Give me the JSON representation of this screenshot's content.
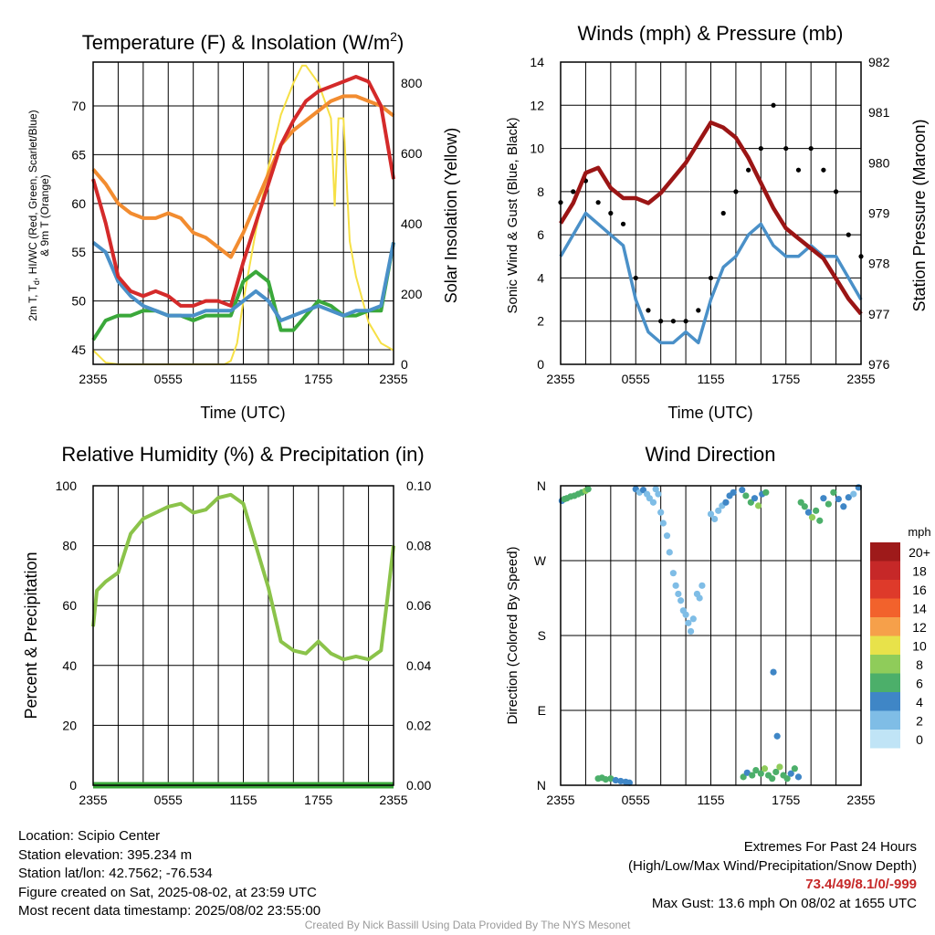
{
  "colors": {
    "temperature": "#d42a2a",
    "dewpoint": "#4a90c8",
    "heat_index_wind_chill": "#3aa83a",
    "temp_9m": "#f28c30",
    "insolation": "#f6e046",
    "wind_speed": "#4a90c8",
    "wind_gust": "#000000",
    "pressure": "#9b1515",
    "humidity": "#8bc34a",
    "precipitation": "#3aa83a"
  },
  "panels": {
    "temperature": {
      "title": "Temperature (F) & Insolation (W/m²)",
      "ylabel_left": "2m T, Td, HI/WC (Red, Green, Scarlet/Blue) & 9m T (Orange)",
      "ylabel_right": "Solar Insolation (Yellow)",
      "xlabel": "Time (UTC)"
    },
    "winds": {
      "title": "Winds (mph) & Pressure (mb)",
      "ylabel_left": "Sonic Wind & Gust (Blue, Black)",
      "ylabel_right": "Station Pressure (Maroon)",
      "xlabel": "Time (UTC)"
    },
    "humidity": {
      "title": "Relative Humidity (%) & Precipitation (in)",
      "ylabel_left": "Percent & Precipitation"
    },
    "direction": {
      "title": "Wind Direction",
      "ylabel_left": "Direction (Colored By Speed)",
      "colorbar_title": "mph",
      "colorbar_labels": [
        "20+",
        "18",
        "16",
        "14",
        "12",
        "10",
        "8",
        "6",
        "4",
        "2",
        "0"
      ],
      "colorbar_colors": [
        "#9e1a1a",
        "#c62828",
        "#de3a2a",
        "#f2622c",
        "#f6a04a",
        "#e8e24a",
        "#8fcc5a",
        "#4caf6a",
        "#3f86c6",
        "#7fbde6",
        "#c0e4f6"
      ]
    }
  },
  "info": {
    "location": "Location: Scipio Center",
    "elevation": "Station elevation: 395.234 m",
    "latlon": "Station lat/lon: 42.7562; -76.534",
    "created": "Figure created on Sat, 2025-08-02, at 23:59 UTC",
    "recent": "Most recent data timestamp: 2025/08/02 23:55:00"
  },
  "extremes": {
    "heading": "Extremes For Past 24 Hours",
    "subheading": "(High/Low/Max Wind/Precipitation/Snow Depth)",
    "values": "73.4/49/8.1/0/-999",
    "max_gust": "Max Gust: 13.6 mph On 08/02 at 1655 UTC"
  },
  "credit": "Created By Nick Bassill Using Data Provided By The NYS Mesonet",
  "chart_data": [
    {
      "type": "line",
      "x_ticks": [
        "2355",
        "0555",
        "1155",
        "1755",
        "2355"
      ],
      "x_hours": [
        0,
        6,
        12,
        18,
        24
      ],
      "ylim": [
        43.5,
        74.5
      ],
      "y_ticks": [
        45,
        50,
        55,
        60,
        65,
        70
      ],
      "y2lim": [
        0,
        860
      ],
      "y2_ticks": [
        0,
        200,
        400,
        600,
        800
      ],
      "x": [
        0,
        1,
        2,
        3,
        4,
        5,
        6,
        7,
        8,
        9,
        10,
        11,
        12,
        13,
        14,
        15,
        16,
        17,
        18,
        19,
        20,
        21,
        22,
        23,
        24
      ],
      "series": [
        {
          "key": "temperature",
          "values": [
            62.5,
            58,
            52.5,
            51,
            50.5,
            51,
            50.5,
            49.5,
            49.5,
            50,
            50,
            49.5,
            54,
            58,
            62,
            66,
            68.5,
            70.5,
            71.5,
            72,
            72.5,
            73,
            72.5,
            70,
            62.5
          ]
        },
        {
          "key": "temp_9m",
          "values": [
            63.5,
            62,
            60,
            59,
            58.5,
            58.5,
            59,
            58.5,
            57,
            56.5,
            55.5,
            54.5,
            57,
            60,
            63,
            66,
            67.5,
            68.5,
            69.5,
            70.5,
            71,
            71,
            70.5,
            70,
            69
          ]
        },
        {
          "key": "dewpoint",
          "values": [
            56,
            55,
            52,
            50.5,
            49.5,
            49,
            48.5,
            48.5,
            48.5,
            49,
            49,
            49,
            50,
            51,
            50,
            48,
            48.5,
            49,
            49.5,
            49,
            48.5,
            49,
            49,
            49.5,
            56
          ]
        },
        {
          "key": "heat_index_wind_chill",
          "values": [
            46,
            48,
            48.5,
            48.5,
            49,
            49,
            48.5,
            48.5,
            48,
            48.5,
            48.5,
            48.5,
            52,
            53,
            52,
            47,
            47,
            48.5,
            50,
            49.5,
            48.5,
            48.5,
            49,
            49,
            56
          ]
        }
      ],
      "insolation": {
        "key": "insolation",
        "x": [
          0,
          1,
          2,
          3,
          4,
          5,
          6,
          7,
          8,
          9,
          10,
          10.5,
          11,
          11.5,
          12,
          13,
          14,
          15,
          16,
          16.7,
          17,
          18,
          19,
          19.3,
          19.6,
          20,
          20.5,
          21,
          22,
          23,
          24
        ],
        "values": [
          40,
          5,
          0,
          0,
          0,
          0,
          0,
          0,
          0,
          0,
          0,
          0,
          10,
          60,
          180,
          380,
          560,
          710,
          800,
          850,
          850,
          800,
          700,
          450,
          700,
          700,
          350,
          250,
          120,
          60,
          40
        ]
      }
    },
    {
      "type": "line",
      "x_ticks": [
        "2355",
        "0555",
        "1155",
        "1755",
        "2355"
      ],
      "x_hours": [
        0,
        6,
        12,
        18,
        24
      ],
      "ylim": [
        0,
        14
      ],
      "y_ticks": [
        0,
        2,
        4,
        6,
        8,
        10,
        12,
        14
      ],
      "y2lim": [
        976,
        982
      ],
      "y2_ticks": [
        976,
        977,
        978,
        979,
        980,
        981,
        982
      ],
      "x": [
        0,
        1,
        2,
        3,
        4,
        5,
        6,
        7,
        8,
        9,
        10,
        11,
        12,
        13,
        14,
        15,
        16,
        17,
        18,
        19,
        20,
        21,
        22,
        23,
        24
      ],
      "series": [
        {
          "key": "wind_speed",
          "values": [
            5,
            6,
            7,
            6.5,
            6,
            5.5,
            3,
            1.5,
            1,
            1,
            1.5,
            1,
            3,
            4.5,
            5,
            6,
            6.5,
            5.5,
            5,
            5,
            5.5,
            5,
            5,
            4,
            3
          ]
        },
        {
          "key": "wind_gust",
          "values": [
            7.5,
            8,
            8.5,
            7.5,
            7,
            6.5,
            4,
            2.5,
            2,
            2,
            2,
            2.5,
            4,
            7,
            8,
            9,
            10,
            12,
            10,
            9,
            10,
            9,
            8,
            6,
            5
          ]
        },
        {
          "key": "pressure",
          "values": [
            978.8,
            979.2,
            979.8,
            979.9,
            979.5,
            979.3,
            979.3,
            979.2,
            979.4,
            979.7,
            980.0,
            980.4,
            980.8,
            980.7,
            980.5,
            980.1,
            979.6,
            979.1,
            978.7,
            978.5,
            978.3,
            978.1,
            977.7,
            977.3,
            977.0
          ]
        }
      ]
    },
    {
      "type": "line",
      "x_ticks": [
        "2355",
        "0555",
        "1155",
        "1755",
        "2355"
      ],
      "x_hours": [
        0,
        6,
        12,
        18,
        24
      ],
      "ylim": [
        0,
        100
      ],
      "y_ticks": [
        0,
        20,
        40,
        60,
        80,
        100
      ],
      "y2lim": [
        0,
        0.1
      ],
      "y2_ticks": [
        "0.00",
        "0.02",
        "0.04",
        "0.06",
        "0.08",
        "0.10"
      ],
      "x": [
        0,
        0.3,
        1,
        2,
        3,
        4,
        5,
        6,
        7,
        8,
        9,
        10,
        11,
        12,
        13,
        14,
        15,
        16,
        17,
        18,
        19,
        20,
        21,
        22,
        23,
        23.5,
        24
      ],
      "series": [
        {
          "key": "humidity",
          "values": [
            53,
            65,
            68,
            71,
            84,
            89,
            91,
            93,
            94,
            91,
            92,
            96,
            97,
            94,
            80,
            66,
            48,
            45,
            44,
            48,
            44,
            42,
            43,
            42,
            45,
            62,
            80
          ]
        },
        {
          "key": "precipitation",
          "values": [
            0,
            0,
            0,
            0,
            0,
            0,
            0,
            0,
            0,
            0,
            0,
            0,
            0,
            0,
            0,
            0,
            0,
            0,
            0,
            0,
            0,
            0,
            0,
            0,
            0,
            0,
            0
          ]
        }
      ]
    },
    {
      "type": "scatter",
      "x_ticks": [
        "2355",
        "0555",
        "1155",
        "1755",
        "2355"
      ],
      "x_hours": [
        0,
        6,
        12,
        18,
        24
      ],
      "y_ticks": [
        "N",
        "E",
        "S",
        "W",
        "N"
      ],
      "ylim": [
        0,
        360
      ],
      "points": [
        [
          0.1,
          342,
          4
        ],
        [
          0.3,
          344,
          5
        ],
        [
          0.5,
          345,
          5
        ],
        [
          0.8,
          347,
          6
        ],
        [
          1.1,
          348,
          6
        ],
        [
          1.4,
          350,
          6
        ],
        [
          1.7,
          352,
          6
        ],
        [
          2.0,
          354,
          7
        ],
        [
          2.2,
          356,
          6
        ],
        [
          3.0,
          8,
          5
        ],
        [
          3.3,
          9,
          6
        ],
        [
          3.6,
          7,
          5
        ],
        [
          4.0,
          8,
          6
        ],
        [
          4.4,
          6,
          4
        ],
        [
          4.8,
          5,
          4
        ],
        [
          5.2,
          4,
          3
        ],
        [
          5.5,
          3,
          3
        ],
        [
          6.0,
          356,
          3
        ],
        [
          6.3,
          352,
          2
        ],
        [
          6.6,
          355,
          3
        ],
        [
          6.9,
          350,
          2
        ],
        [
          7.1,
          345,
          1
        ],
        [
          7.4,
          340,
          2
        ],
        [
          7.6,
          356,
          1
        ],
        [
          7.8,
          350,
          1
        ],
        [
          8.0,
          328,
          1
        ],
        [
          8.2,
          315,
          2
        ],
        [
          8.5,
          300,
          1
        ],
        [
          8.7,
          280,
          1
        ],
        [
          9.0,
          255,
          1
        ],
        [
          9.2,
          240,
          1
        ],
        [
          9.4,
          230,
          2
        ],
        [
          9.6,
          222,
          1
        ],
        [
          9.8,
          210,
          1
        ],
        [
          10.0,
          205,
          1
        ],
        [
          10.2,
          195,
          1
        ],
        [
          10.4,
          185,
          1
        ],
        [
          10.6,
          200,
          1
        ],
        [
          10.9,
          230,
          1
        ],
        [
          11.1,
          225,
          1
        ],
        [
          11.3,
          240,
          1
        ],
        [
          12.0,
          326,
          2
        ],
        [
          12.3,
          320,
          1
        ],
        [
          12.6,
          330,
          1
        ],
        [
          12.9,
          336,
          2
        ],
        [
          13.2,
          340,
          3
        ],
        [
          13.5,
          348,
          3
        ],
        [
          13.8,
          352,
          4
        ],
        [
          14.5,
          355,
          4
        ],
        [
          14.8,
          348,
          5
        ],
        [
          15.2,
          340,
          6
        ],
        [
          15.5,
          345,
          3
        ],
        [
          15.8,
          336,
          7
        ],
        [
          16.1,
          350,
          4
        ],
        [
          16.4,
          352,
          5
        ],
        [
          14.6,
          10,
          5
        ],
        [
          14.9,
          15,
          4
        ],
        [
          15.3,
          12,
          6
        ],
        [
          15.6,
          18,
          5
        ],
        [
          16.0,
          14,
          6
        ],
        [
          16.3,
          20,
          7
        ],
        [
          16.6,
          12,
          5
        ],
        [
          16.9,
          8,
          6
        ],
        [
          17.2,
          16,
          5
        ],
        [
          17.5,
          22,
          7
        ],
        [
          17.8,
          12,
          6
        ],
        [
          18.1,
          8,
          5
        ],
        [
          18.4,
          14,
          4
        ],
        [
          18.7,
          20,
          6
        ],
        [
          19.0,
          10,
          4
        ],
        [
          17.0,
          136,
          3
        ],
        [
          17.3,
          59,
          3
        ],
        [
          19.2,
          340,
          6
        ],
        [
          19.5,
          335,
          5
        ],
        [
          19.8,
          328,
          4
        ],
        [
          20.1,
          322,
          7
        ],
        [
          20.4,
          330,
          6
        ],
        [
          20.7,
          318,
          5
        ],
        [
          21.0,
          345,
          4
        ],
        [
          21.4,
          338,
          6
        ],
        [
          21.8,
          352,
          5
        ],
        [
          22.2,
          344,
          3
        ],
        [
          22.6,
          335,
          4
        ],
        [
          23.0,
          346,
          3
        ],
        [
          23.4,
          350,
          2
        ],
        [
          23.8,
          358,
          3
        ]
      ]
    }
  ]
}
